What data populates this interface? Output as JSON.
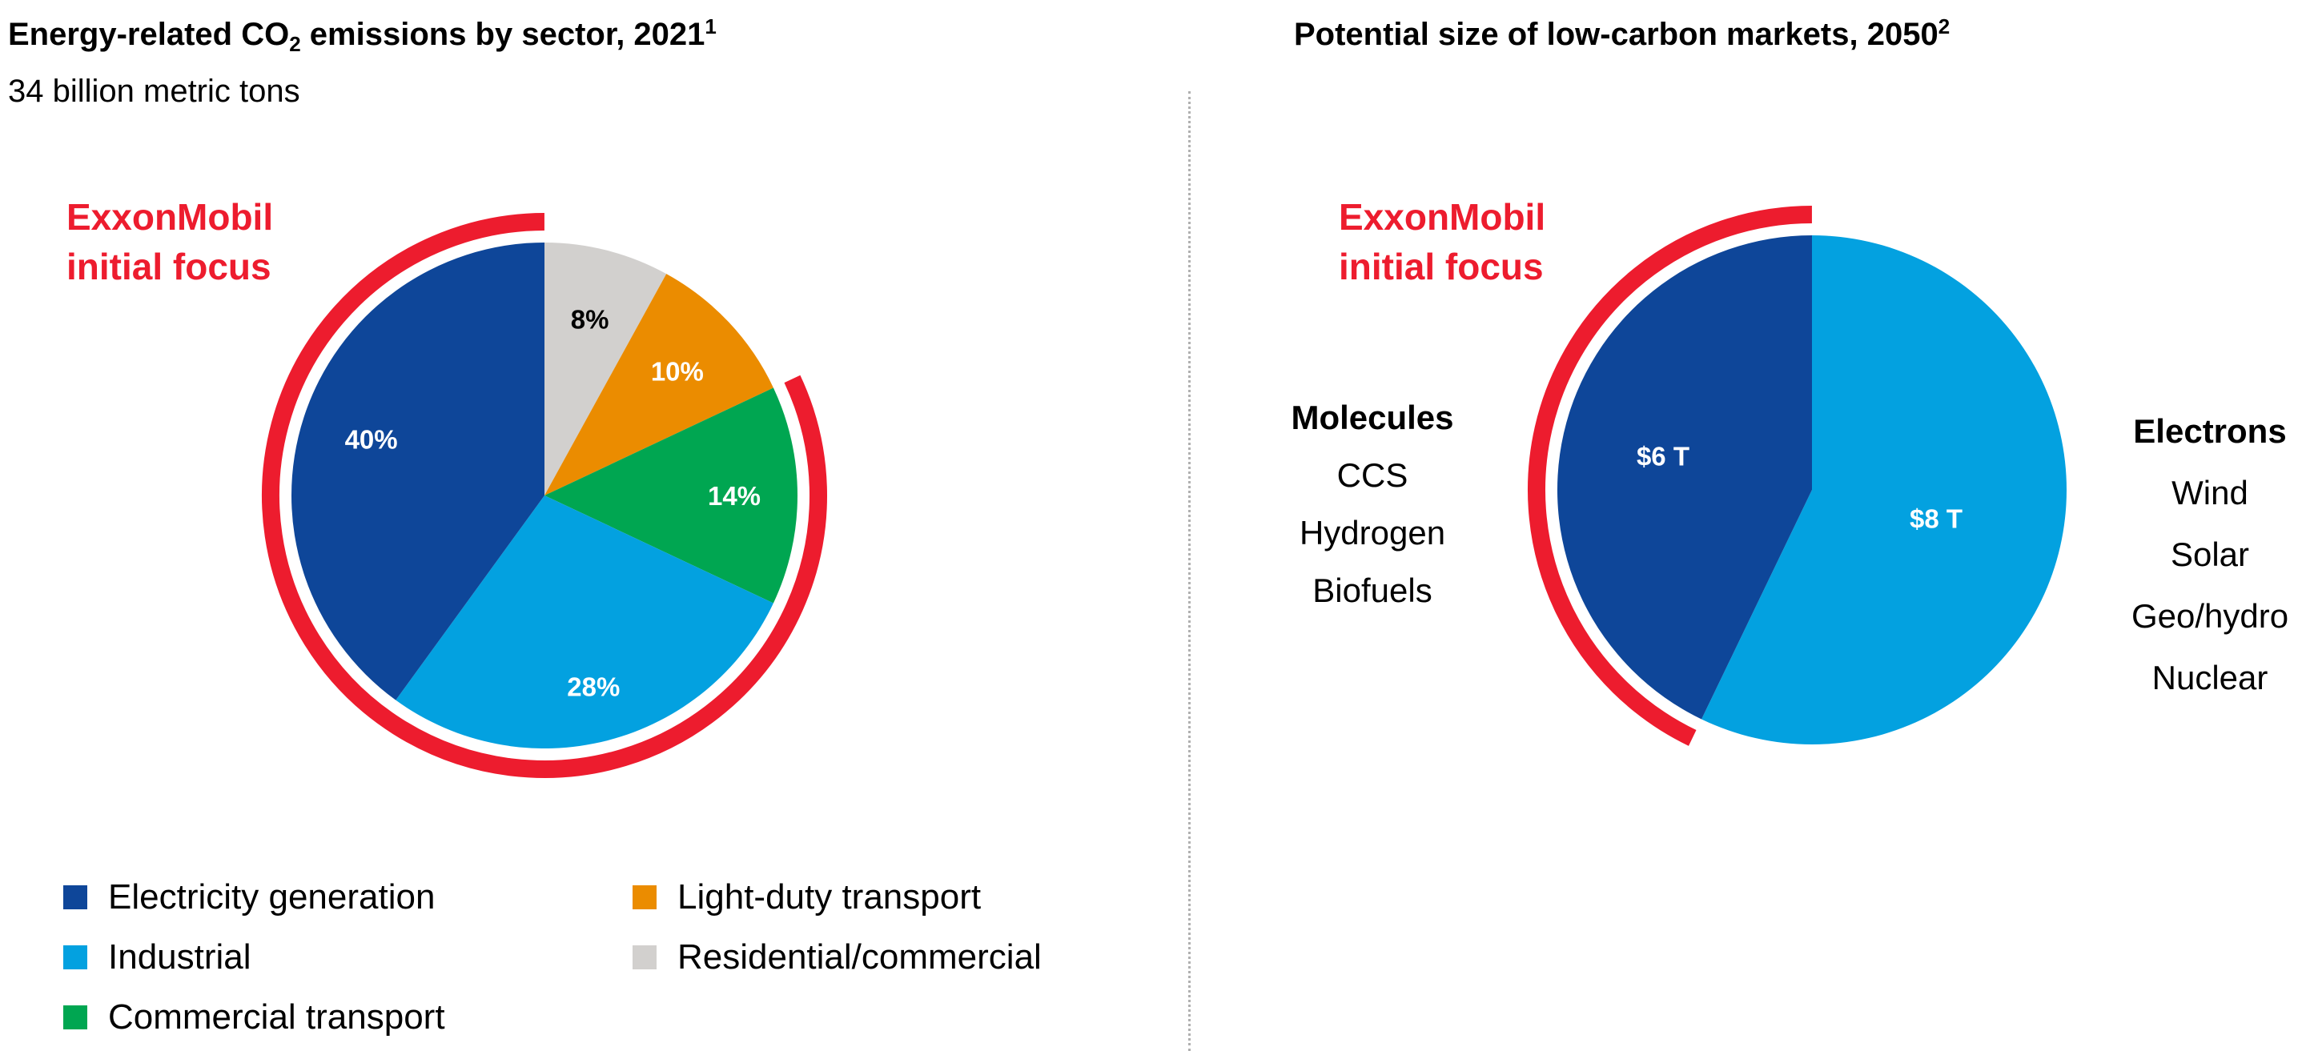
{
  "colors": {
    "red": "#ed1c2e",
    "dark_blue": "#0e4699",
    "light_blue": "#03a1e0",
    "green": "#00a651",
    "orange": "#eb8c00",
    "gray": "#d2d0ce"
  },
  "chart_data": [
    {
      "type": "pie",
      "title_pre": "Energy-related CO",
      "title_sub": "2",
      "title_post": " emissions by sector, 2021",
      "title_footnote": "1",
      "subtitle": "34 billion metric tons",
      "highlight_label": [
        "ExxonMobil",
        "initial focus"
      ],
      "slices": [
        {
          "name": "Residential/commercial",
          "value": 8,
          "label": "8%",
          "color": "#d2d0ce",
          "label_color": "#000000",
          "highlighted": false
        },
        {
          "name": "Light-duty transport",
          "value": 10,
          "label": "10%",
          "color": "#eb8c00",
          "label_color": "#ffffff",
          "highlighted": false
        },
        {
          "name": "Commercial transport",
          "value": 14,
          "label": "14%",
          "color": "#00a651",
          "label_color": "#ffffff",
          "highlighted": true
        },
        {
          "name": "Industrial",
          "value": 28,
          "label": "28%",
          "color": "#03a1e0",
          "label_color": "#ffffff",
          "highlighted": true
        },
        {
          "name": "Electricity generation",
          "value": 40,
          "label": "40%",
          "color": "#0e4699",
          "label_color": "#ffffff",
          "highlighted": true
        }
      ],
      "legend": [
        {
          "name": "Electricity generation",
          "color": "#0e4699"
        },
        {
          "name": "Industrial",
          "color": "#03a1e0"
        },
        {
          "name": "Commercial transport",
          "color": "#00a651"
        },
        {
          "name": "Light-duty transport",
          "color": "#eb8c00"
        },
        {
          "name": "Residential/commercial",
          "color": "#d2d0ce"
        }
      ]
    },
    {
      "type": "pie",
      "title": "Potential size of low-carbon markets, 2050",
      "title_footnote": "2",
      "highlight_label": [
        "ExxonMobil",
        "initial focus"
      ],
      "slices": [
        {
          "name": "Electrons",
          "value": 8,
          "label": "$8 T",
          "color": "#03a1e0",
          "label_color": "#ffffff",
          "highlighted": false
        },
        {
          "name": "Molecules",
          "value": 6,
          "label": "$6 T",
          "color": "#0e4699",
          "label_color": "#ffffff",
          "highlighted": true
        }
      ],
      "groups": {
        "molecules": {
          "title": "Molecules",
          "items": [
            "CCS",
            "Hydrogen",
            "Biofuels"
          ]
        },
        "electrons": {
          "title": "Electrons",
          "items": [
            "Wind",
            "Solar",
            "Geo/hydro",
            "Nuclear"
          ]
        }
      }
    }
  ]
}
